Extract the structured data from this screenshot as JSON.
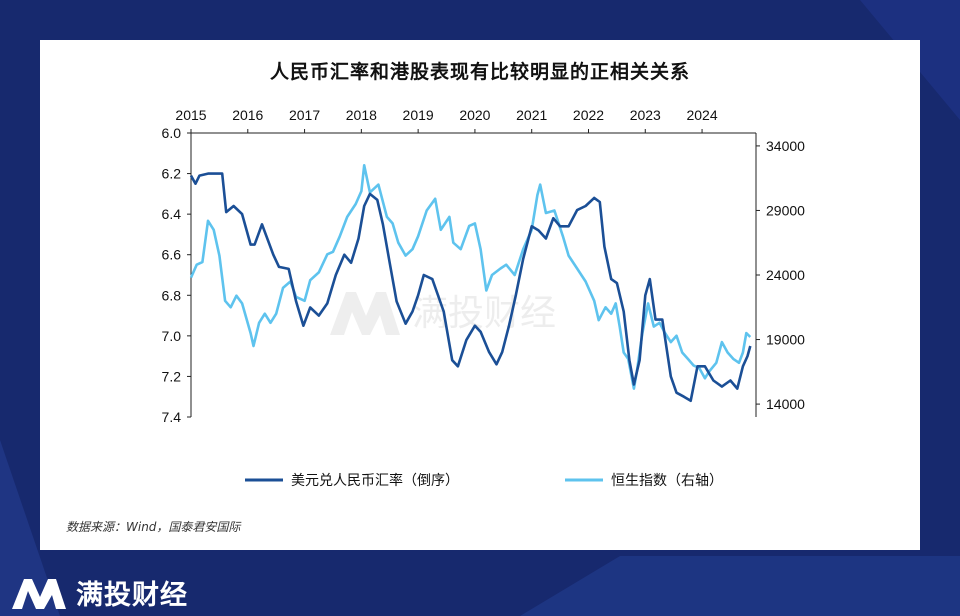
{
  "page": {
    "brand_name": "满投财经",
    "watermark": "满投财经"
  },
  "chart_data": {
    "type": "line",
    "title": "人民币汇率和港股表现有比较明显的正相关关系",
    "source": "数据来源：Wind，国泰君安国际",
    "x_ticks": [
      "2015",
      "2016",
      "2017",
      "2018",
      "2019",
      "2020",
      "2021",
      "2022",
      "2023",
      "2024"
    ],
    "x_range": [
      2015.0,
      2024.95
    ],
    "left_axis": {
      "ticks": [
        "6.0",
        "6.2",
        "6.4",
        "6.6",
        "6.8",
        "7.0",
        "7.2",
        "7.4"
      ],
      "range": [
        6.0,
        7.4
      ],
      "inverted": true
    },
    "right_axis": {
      "ticks": [
        "34000",
        "29000",
        "24000",
        "19000",
        "14000"
      ],
      "range": [
        13000,
        35000
      ]
    },
    "grid": false,
    "legend_position": "bottom",
    "series": [
      {
        "name": "美元兑人民币汇率（倒序）",
        "axis": "left",
        "color": "#1b4f96",
        "points": [
          [
            2015.0,
            6.21
          ],
          [
            2015.08,
            6.25
          ],
          [
            2015.15,
            6.21
          ],
          [
            2015.3,
            6.2
          ],
          [
            2015.55,
            6.2
          ],
          [
            2015.62,
            6.39
          ],
          [
            2015.75,
            6.36
          ],
          [
            2015.9,
            6.4
          ],
          [
            2016.05,
            6.55
          ],
          [
            2016.12,
            6.55
          ],
          [
            2016.25,
            6.45
          ],
          [
            2016.45,
            6.6
          ],
          [
            2016.55,
            6.66
          ],
          [
            2016.72,
            6.67
          ],
          [
            2016.85,
            6.83
          ],
          [
            2016.98,
            6.95
          ],
          [
            2017.1,
            6.86
          ],
          [
            2017.25,
            6.9
          ],
          [
            2017.4,
            6.84
          ],
          [
            2017.55,
            6.7
          ],
          [
            2017.7,
            6.6
          ],
          [
            2017.82,
            6.64
          ],
          [
            2017.95,
            6.52
          ],
          [
            2018.05,
            6.36
          ],
          [
            2018.15,
            6.3
          ],
          [
            2018.28,
            6.33
          ],
          [
            2018.38,
            6.45
          ],
          [
            2018.5,
            6.64
          ],
          [
            2018.62,
            6.83
          ],
          [
            2018.78,
            6.94
          ],
          [
            2018.9,
            6.88
          ],
          [
            2019.0,
            6.8
          ],
          [
            2019.1,
            6.7
          ],
          [
            2019.25,
            6.72
          ],
          [
            2019.45,
            6.88
          ],
          [
            2019.6,
            7.12
          ],
          [
            2019.7,
            7.15
          ],
          [
            2019.85,
            7.02
          ],
          [
            2020.0,
            6.95
          ],
          [
            2020.1,
            6.98
          ],
          [
            2020.25,
            7.08
          ],
          [
            2020.38,
            7.14
          ],
          [
            2020.48,
            7.08
          ],
          [
            2020.6,
            6.95
          ],
          [
            2020.72,
            6.8
          ],
          [
            2020.85,
            6.62
          ],
          [
            2021.0,
            6.46
          ],
          [
            2021.12,
            6.48
          ],
          [
            2021.25,
            6.52
          ],
          [
            2021.38,
            6.42
          ],
          [
            2021.5,
            6.46
          ],
          [
            2021.65,
            6.46
          ],
          [
            2021.8,
            6.38
          ],
          [
            2021.95,
            6.36
          ],
          [
            2022.1,
            6.32
          ],
          [
            2022.2,
            6.34
          ],
          [
            2022.28,
            6.56
          ],
          [
            2022.4,
            6.72
          ],
          [
            2022.5,
            6.74
          ],
          [
            2022.62,
            6.88
          ],
          [
            2022.72,
            7.12
          ],
          [
            2022.8,
            7.24
          ],
          [
            2022.9,
            7.12
          ],
          [
            2023.0,
            6.8
          ],
          [
            2023.08,
            6.72
          ],
          [
            2023.18,
            6.92
          ],
          [
            2023.3,
            6.92
          ],
          [
            2023.45,
            7.2
          ],
          [
            2023.55,
            7.28
          ],
          [
            2023.68,
            7.3
          ],
          [
            2023.8,
            7.32
          ],
          [
            2023.92,
            7.15
          ],
          [
            2024.05,
            7.15
          ],
          [
            2024.2,
            7.22
          ],
          [
            2024.35,
            7.25
          ],
          [
            2024.5,
            7.22
          ],
          [
            2024.62,
            7.26
          ],
          [
            2024.72,
            7.15
          ],
          [
            2024.8,
            7.1
          ],
          [
            2024.85,
            7.05
          ]
        ]
      },
      {
        "name": "恒生指数（右轴）",
        "axis": "right",
        "color": "#5ec3ee",
        "points": [
          [
            2015.0,
            23800
          ],
          [
            2015.1,
            24800
          ],
          [
            2015.2,
            25000
          ],
          [
            2015.3,
            28200
          ],
          [
            2015.4,
            27500
          ],
          [
            2015.5,
            25500
          ],
          [
            2015.6,
            22000
          ],
          [
            2015.7,
            21500
          ],
          [
            2015.8,
            22400
          ],
          [
            2015.9,
            21800
          ],
          [
            2016.05,
            19500
          ],
          [
            2016.1,
            18500
          ],
          [
            2016.2,
            20300
          ],
          [
            2016.3,
            21000
          ],
          [
            2016.4,
            20300
          ],
          [
            2016.5,
            21000
          ],
          [
            2016.62,
            23000
          ],
          [
            2016.75,
            23500
          ],
          [
            2016.85,
            22300
          ],
          [
            2017.0,
            22000
          ],
          [
            2017.1,
            23600
          ],
          [
            2017.25,
            24200
          ],
          [
            2017.4,
            25600
          ],
          [
            2017.5,
            25800
          ],
          [
            2017.62,
            27000
          ],
          [
            2017.75,
            28500
          ],
          [
            2017.9,
            29500
          ],
          [
            2018.0,
            30500
          ],
          [
            2018.05,
            32500
          ],
          [
            2018.15,
            30400
          ],
          [
            2018.3,
            31000
          ],
          [
            2018.45,
            28500
          ],
          [
            2018.55,
            28000
          ],
          [
            2018.65,
            26500
          ],
          [
            2018.78,
            25500
          ],
          [
            2018.9,
            26000
          ],
          [
            2019.0,
            27000
          ],
          [
            2019.15,
            29000
          ],
          [
            2019.3,
            29900
          ],
          [
            2019.4,
            27500
          ],
          [
            2019.55,
            28500
          ],
          [
            2019.62,
            26500
          ],
          [
            2019.75,
            26000
          ],
          [
            2019.9,
            27800
          ],
          [
            2020.0,
            28000
          ],
          [
            2020.1,
            26000
          ],
          [
            2020.2,
            22800
          ],
          [
            2020.3,
            24000
          ],
          [
            2020.45,
            24500
          ],
          [
            2020.55,
            24800
          ],
          [
            2020.7,
            24000
          ],
          [
            2020.85,
            26000
          ],
          [
            2021.0,
            27500
          ],
          [
            2021.1,
            30200
          ],
          [
            2021.15,
            31000
          ],
          [
            2021.25,
            28800
          ],
          [
            2021.4,
            29000
          ],
          [
            2021.55,
            27000
          ],
          [
            2021.65,
            25500
          ],
          [
            2021.8,
            24500
          ],
          [
            2021.95,
            23500
          ],
          [
            2022.1,
            22000
          ],
          [
            2022.18,
            20500
          ],
          [
            2022.3,
            21500
          ],
          [
            2022.4,
            21000
          ],
          [
            2022.48,
            21800
          ],
          [
            2022.55,
            20000
          ],
          [
            2022.62,
            18000
          ],
          [
            2022.7,
            17500
          ],
          [
            2022.8,
            15200
          ],
          [
            2022.85,
            16500
          ],
          [
            2022.95,
            19500
          ],
          [
            2023.05,
            21800
          ],
          [
            2023.15,
            20000
          ],
          [
            2023.25,
            20300
          ],
          [
            2023.35,
            19500
          ],
          [
            2023.45,
            18800
          ],
          [
            2023.55,
            19300
          ],
          [
            2023.65,
            18000
          ],
          [
            2023.75,
            17500
          ],
          [
            2023.85,
            17000
          ],
          [
            2023.95,
            16800
          ],
          [
            2024.05,
            16000
          ],
          [
            2024.12,
            16500
          ],
          [
            2024.25,
            17200
          ],
          [
            2024.35,
            18800
          ],
          [
            2024.45,
            18000
          ],
          [
            2024.55,
            17500
          ],
          [
            2024.65,
            17200
          ],
          [
            2024.72,
            18000
          ],
          [
            2024.78,
            19500
          ],
          [
            2024.85,
            19200
          ]
        ]
      }
    ]
  }
}
